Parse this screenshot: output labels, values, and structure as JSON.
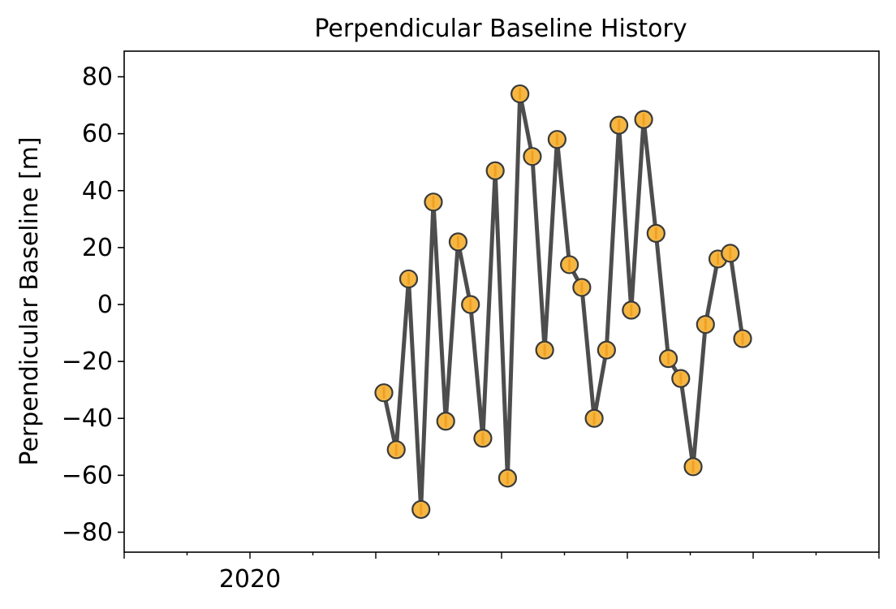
{
  "colors": {
    "line": "#4d4d4d",
    "marker_fill": "#f5b642",
    "marker_edge": "#3a3a3a",
    "tick_stroke": "#f0a020",
    "axes": "#000000"
  },
  "chart_data": {
    "type": "line",
    "title": "Perpendicular Baseline History",
    "xlabel": "",
    "ylabel": "Perpendicular Baseline [m]",
    "ylim": [
      -87,
      89
    ],
    "yticks": [
      -80,
      -60,
      -40,
      -20,
      0,
      20,
      40,
      60,
      80
    ],
    "ytick_labels": [
      "−80",
      "−60",
      "−40",
      "−20",
      "0",
      "20",
      "40",
      "60",
      "80"
    ],
    "xtick_labels": [
      "2020"
    ],
    "grid": false,
    "marker": "circle",
    "series": [
      {
        "values": [
          -31,
          -51,
          9,
          -72,
          36,
          -41,
          22,
          0,
          -47,
          47,
          -61,
          74,
          52,
          -16,
          58,
          14,
          6,
          -40,
          -16,
          63,
          -2,
          65,
          25,
          -19,
          -26,
          -57,
          -7,
          16,
          18,
          -12
        ]
      }
    ]
  }
}
